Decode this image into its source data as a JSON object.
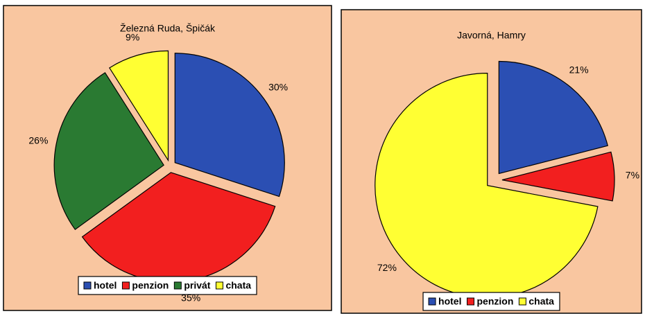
{
  "chart_data": [
    {
      "type": "pie",
      "title": "Železná Ruda, Špičák",
      "categories": [
        "hotel",
        "penzion",
        "privát",
        "chata"
      ],
      "values": [
        30,
        35,
        26,
        9
      ],
      "value_labels": [
        "30%",
        "35%",
        "26%",
        "9%"
      ],
      "colors": [
        "#2b4fb3",
        "#f21f1f",
        "#2a7a32",
        "#ffff33"
      ]
    },
    {
      "type": "pie",
      "title": "Javorná, Hamry",
      "categories": [
        "hotel",
        "penzion",
        "chata"
      ],
      "values": [
        21,
        7,
        72
      ],
      "value_labels": [
        "21%",
        "7%",
        "72%"
      ],
      "colors": [
        "#2b4fb3",
        "#f21f1f",
        "#ffff33"
      ]
    }
  ]
}
